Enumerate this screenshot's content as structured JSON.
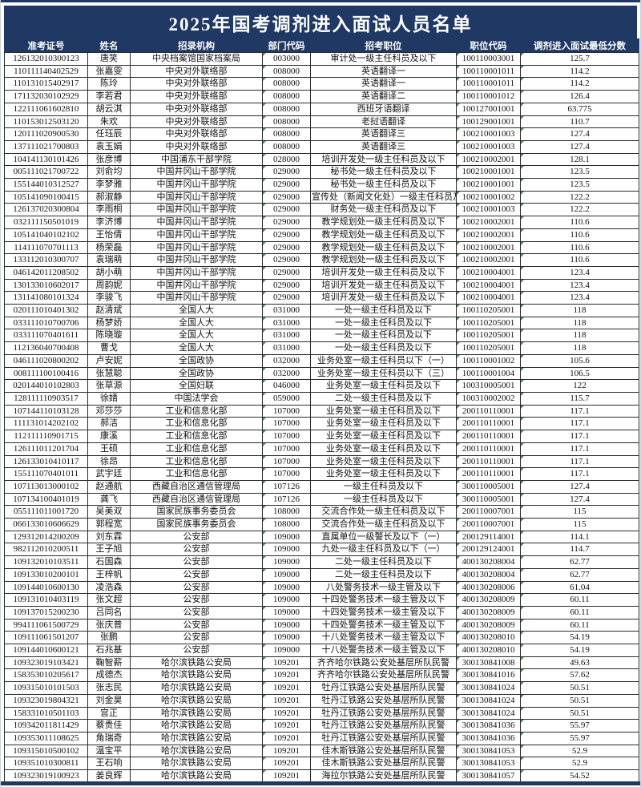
{
  "title": "2025年国考调剂进入面试人员名单",
  "colors": {
    "header_bg": "#1F3864",
    "title_text": "#ffffff",
    "cell_border": "#2a2a2a",
    "excel_mark": "#3c9a46"
  },
  "table": {
    "headers": [
      "准考证号",
      "姓名",
      "招录机构",
      "部门代码",
      "招考职位",
      "职位代码",
      "调剂进入面试最低分数"
    ],
    "field_names": [
      "exam-no",
      "name",
      "agency",
      "dept-code",
      "position",
      "position-code",
      "min-score"
    ],
    "excel_mark_columns": [
      3,
      5,
      6
    ],
    "rows": [
      [
        "126132010300123",
        "唐笑",
        "中央档案馆国家档案局",
        "003000",
        "审计处一级主任科员及以下",
        "100110003001",
        "125.7"
      ],
      [
        "110111140402529",
        "张嘉雯",
        "中央对外联络部",
        "008000",
        "英语翻译一",
        "100110001011",
        "114.2"
      ],
      [
        "110131015402917",
        "陈玲",
        "中央对外联络部",
        "008000",
        "英语翻译一",
        "100110001011",
        "114.2"
      ],
      [
        "171132030102929",
        "李若君",
        "中央对外联络部",
        "008000",
        "英语翻译二",
        "100110001012",
        "126.4"
      ],
      [
        "122111061602810",
        "胡云淇",
        "中央对外联络部",
        "008000",
        "西班牙语翻译",
        "100127001001",
        "63.775"
      ],
      [
        "110153012503120",
        "朱欢",
        "中央对外联络部",
        "008000",
        "老挝语翻译",
        "100129001001",
        "110.7"
      ],
      [
        "120111020900530",
        "任珏辰",
        "中央对外联络部",
        "008000",
        "英语翻译三",
        "100210001003",
        "127.4"
      ],
      [
        "137111021700803",
        "袁玉娟",
        "中央对外联络部",
        "008000",
        "英语翻译三",
        "100210001003",
        "127.4"
      ],
      [
        "104141130101426",
        "张彦博",
        "中国浦东干部学院",
        "028000",
        "培训开发处一级主任科员及以下",
        "100210002001",
        "128.1"
      ],
      [
        "005111021700722",
        "刘俞均",
        "中国井冈山干部学院",
        "029000",
        "秘书处一级主任科员及以下",
        "100210001001",
        "123.5"
      ],
      [
        "155144010312527",
        "李梦雅",
        "中国井冈山干部学院",
        "029000",
        "秘书处一级主任科员及以下",
        "100210001001",
        "123.5"
      ],
      [
        "105141090100415",
        "郝淑静",
        "中国井冈山干部学院",
        "029000",
        "宣传处（新闻文化处）一级主任科员及以下",
        "100210001002",
        "122.2"
      ],
      [
        "126137020300804",
        "李雨桐",
        "中国井冈山干部学院",
        "029000",
        "财务处一级主任科员及以下",
        "100210001003",
        "122.2"
      ],
      [
        "032111150501019",
        "李济博",
        "中国井冈山干部学院",
        "029000",
        "教学规划处一级主任科员及以下",
        "100210002001",
        "110.6"
      ],
      [
        "105141040102102",
        "王怡倩",
        "中国井冈山干部学院",
        "029000",
        "教学规划处一级主任科员及以下",
        "100210002001",
        "110.6"
      ],
      [
        "114111070701113",
        "杨荣磊",
        "中国井冈山干部学院",
        "029000",
        "教学规划处一级主任科员及以下",
        "100210002001",
        "110.6"
      ],
      [
        "133112010300707",
        "袁瑞萌",
        "中国井冈山干部学院",
        "029000",
        "教学规划处一级主任科员及以下",
        "100210002001",
        "110.6"
      ],
      [
        "046142011208502",
        "胡小萌",
        "中国井冈山干部学院",
        "029000",
        "培训开发处一级主任科员及以下",
        "100210004001",
        "123.4"
      ],
      [
        "130133010602017",
        "周韵妮",
        "中国井冈山干部学院",
        "029000",
        "培训开发处一级主任科员及以下",
        "100210004001",
        "123.4"
      ],
      [
        "131141080101324",
        "李骏飞",
        "中国井冈山干部学院",
        "029000",
        "培训开发处一级主任科员及以下",
        "100210004001",
        "123.4"
      ],
      [
        "020111010401302",
        "赵清斌",
        "全国人大",
        "031000",
        "一处一级主任科员及以下",
        "100110205001",
        "118"
      ],
      [
        "033111010700706",
        "杨梦娇",
        "全国人大",
        "031000",
        "一处一级主任科员及以下",
        "100110205001",
        "118"
      ],
      [
        "033111070401611",
        "陈晓璇",
        "全国人大",
        "031000",
        "一处一级主任科员及以下",
        "100110205001",
        "118"
      ],
      [
        "112136040700408",
        "曹戈",
        "全国人大",
        "031000",
        "一处一级主任科员及以下",
        "100110205001",
        "118"
      ],
      [
        "046111020800202",
        "卢安妮",
        "全国政协",
        "032000",
        "业务处室一级主任科员以下（一）",
        "100110001002",
        "105.6"
      ],
      [
        "008111100100416",
        "张慧聪",
        "全国政协",
        "032000",
        "业务处室一级主任科员以下（三）",
        "100110001004",
        "106.5"
      ],
      [
        "020144010102803",
        "张草源",
        "全国妇联",
        "046000",
        "业务处室一级主任科员及以下",
        "100310005001",
        "122"
      ],
      [
        "128111110903517",
        "徐婧",
        "中国法学会",
        "059000",
        "二处一级主任科员及以下",
        "100310002002",
        "115.7"
      ],
      [
        "107144110103128",
        "邓莎莎",
        "工业和信息化部",
        "107000",
        "业务处室一级主任科员及以下",
        "200110110001",
        "117.1"
      ],
      [
        "111131014202102",
        "郝洁",
        "工业和信息化部",
        "107000",
        "业务处室一级主任科员及以下",
        "200110110001",
        "117.1"
      ],
      [
        "112111110901715",
        "康溪",
        "工业和信息化部",
        "107000",
        "业务处室一级主任科员及以下",
        "200110110001",
        "117.1"
      ],
      [
        "126111011201704",
        "王硕",
        "工业和信息化部",
        "107000",
        "业务处室一级主任科员及以下",
        "200110110001",
        "117.1"
      ],
      [
        "126133010410117",
        "徐昂",
        "工业和信息化部",
        "107000",
        "业务处室一级主任科员及以下",
        "200110110001",
        "117.1"
      ],
      [
        "155111070401011",
        "武宇廷",
        "工业和信息化部",
        "107000",
        "业务处室一级主任科员及以下",
        "200110110001",
        "117.1"
      ],
      [
        "107113013000102",
        "赵通航",
        "西藏自治区通信管理局",
        "107126",
        "一级主任科员及以下",
        "300110005001",
        "127.4"
      ],
      [
        "107134100401019",
        "龚飞",
        "西藏自治区通信管理局",
        "107126",
        "一级主任科员及以下",
        "300110005001",
        "127.4"
      ],
      [
        "055111011001720",
        "吴美双",
        "国家民族事务委员会",
        "108000",
        "交流合作处一级主任科员及以下",
        "200110007001",
        "115"
      ],
      [
        "066133010606629",
        "郭程宽",
        "国家民族事务委员会",
        "108000",
        "交流合作处一级主任科员及以下",
        "200110007001",
        "115"
      ],
      [
        "129312014200209",
        "刘东霖",
        "公安部",
        "109000",
        "直属单位一级警长及以下（一）",
        "200129114001",
        "114.1"
      ],
      [
        "982112010200511",
        "王子旭",
        "公安部",
        "109000",
        "九处一级主任科员及以下（一）",
        "200129124001",
        "114.7"
      ],
      [
        "109132010103511",
        "石国森",
        "公安部",
        "109000",
        "二处一级主任科员及以下",
        "400130208004",
        "62.77"
      ],
      [
        "109133010200101",
        "王梓帆",
        "公安部",
        "109000",
        "二处一级主任科员及以下",
        "400130208004",
        "62.77"
      ],
      [
        "109144010600130",
        "凌浩森",
        "公安部",
        "109000",
        "八处警务技术一级主管及以下",
        "400130208006",
        "61.04"
      ],
      [
        "109131010403119",
        "张文超",
        "公安部",
        "109000",
        "十四处警务技术一级主管及以下",
        "400130208009",
        "60.11"
      ],
      [
        "109137015200230",
        "吕同名",
        "公安部",
        "109000",
        "十四处警务技术一级主管及以下",
        "400130208009",
        "60.11"
      ],
      [
        "994111061500729",
        "张庆普",
        "公安部",
        "109000",
        "十四处警务技术一级主管及以下",
        "400130208009",
        "60.11"
      ],
      [
        "109111061501207",
        "张鹏",
        "公安部",
        "109000",
        "十八处警务技术一级主管及以下",
        "400130208010",
        "54.19"
      ],
      [
        "109144010600121",
        "石兆基",
        "公安部",
        "109000",
        "十八处警务技术一级主管及以下",
        "400130208010",
        "54.19"
      ],
      [
        "109323019103421",
        "鞠智薪",
        "哈尔滨铁路公安局",
        "109201",
        "齐齐哈尔铁路公安处基层所队民警",
        "300130841008",
        "49.63"
      ],
      [
        "158353010205617",
        "成德杰",
        "哈尔滨铁路公安局",
        "109201",
        "齐齐哈尔铁路公安处基层所队民警",
        "300130841016",
        "57.62"
      ],
      [
        "109315010101503",
        "张志民",
        "哈尔滨铁路公安局",
        "109201",
        "牡丹江铁路公安处基层所队民警",
        "300130841024",
        "50.51"
      ],
      [
        "109323019804321",
        "刘金昊",
        "哈尔滨铁路公安局",
        "109201",
        "牡丹江铁路公安处基层所队民警",
        "300130841024",
        "50.51"
      ],
      [
        "158331010501103",
        "宫正",
        "哈尔滨铁路公安局",
        "109201",
        "牡丹江铁路公安处基层所队民警",
        "300130841024",
        "50.51"
      ],
      [
        "109342011811429",
        "蔡贵佳",
        "哈尔滨铁路公安局",
        "109201",
        "牡丹江铁路公安处基层所队民警",
        "300130841036",
        "55.97"
      ],
      [
        "109353011108625",
        "角瑞奇",
        "哈尔滨铁路公安局",
        "109201",
        "牡丹江铁路公安处基层所队民警",
        "300130841036",
        "55.97"
      ],
      [
        "109315010500102",
        "温宝平",
        "哈尔滨铁路公安局",
        "109201",
        "佳木斯铁路公安处基层所队民警",
        "300130841053",
        "52.9"
      ],
      [
        "109351010300811",
        "王石响",
        "哈尔滨铁路公安局",
        "109201",
        "佳木斯铁路公安处基层所队民警",
        "300130841053",
        "52.9"
      ],
      [
        "109323019100923",
        "姜良辉",
        "哈尔滨铁路公安局",
        "109201",
        "海拉尔铁路公安处基层所队民警",
        "300130841057",
        "54.52"
      ]
    ]
  }
}
